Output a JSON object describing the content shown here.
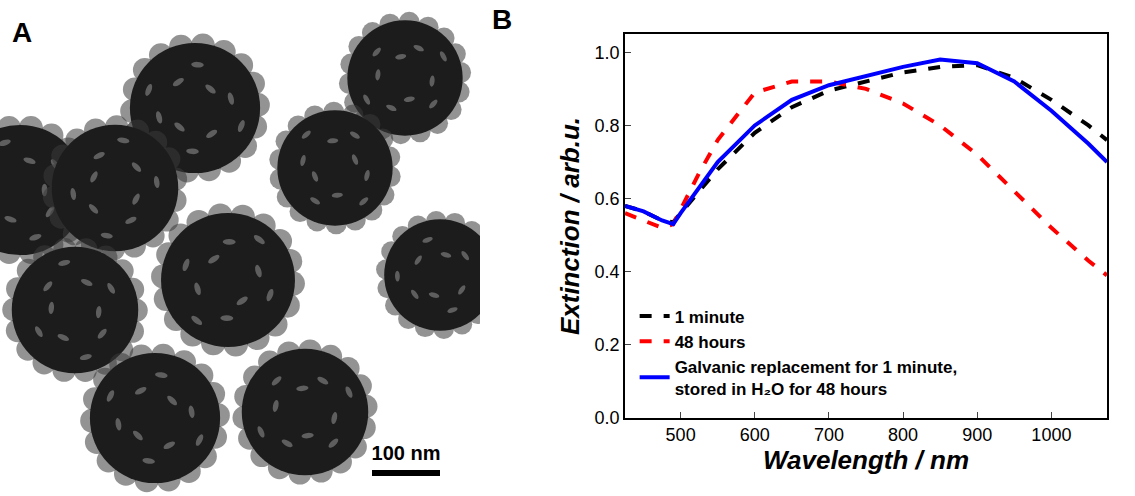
{
  "panel_labels": [
    "A",
    "B"
  ],
  "image": {
    "scale_bar_label": "100 nm"
  },
  "chart_data": {
    "type": "line",
    "x_label": "Wavelength / nm",
    "y_label": "Extinction / arb.u.",
    "xlim": [
      425,
      1075
    ],
    "xticks": [
      500,
      600,
      700,
      800,
      900,
      1000
    ],
    "ylim": [
      0,
      1.05
    ],
    "yticks": [
      {
        "value": 0,
        "label": "0.0"
      },
      0.2,
      0.4,
      0.6,
      0.8,
      {
        "value": 1,
        "label": "1.0"
      }
    ],
    "legend": "lower left",
    "x": [
      425,
      450,
      475,
      490,
      500,
      525,
      550,
      600,
      650,
      700,
      750,
      800,
      850,
      900,
      950,
      1000,
      1050,
      1075
    ],
    "series": [
      {
        "name": "1 minute",
        "color": "#000000",
        "line_style": "dash",
        "values": [
          0.58,
          0.565,
          0.54,
          0.535,
          0.56,
          0.62,
          0.68,
          0.78,
          0.85,
          0.895,
          0.92,
          0.945,
          0.96,
          0.965,
          0.93,
          0.87,
          0.8,
          0.76
        ]
      },
      {
        "name": "48 hours",
        "color": "#ff0000",
        "line_style": "dash",
        "values": [
          0.56,
          0.54,
          0.52,
          0.53,
          0.57,
          0.67,
          0.76,
          0.89,
          0.92,
          0.92,
          0.9,
          0.86,
          0.8,
          0.72,
          0.62,
          0.52,
          0.43,
          0.39
        ]
      },
      {
        "name": "Galvanic replacement for 1 minute, stored in H₂O for 48 hours",
        "color": "#0000ff",
        "line_style": "solid",
        "values": [
          0.58,
          0.565,
          0.54,
          0.53,
          0.56,
          0.63,
          0.7,
          0.8,
          0.87,
          0.91,
          0.935,
          0.96,
          0.98,
          0.97,
          0.92,
          0.84,
          0.75,
          0.7
        ]
      }
    ]
  }
}
